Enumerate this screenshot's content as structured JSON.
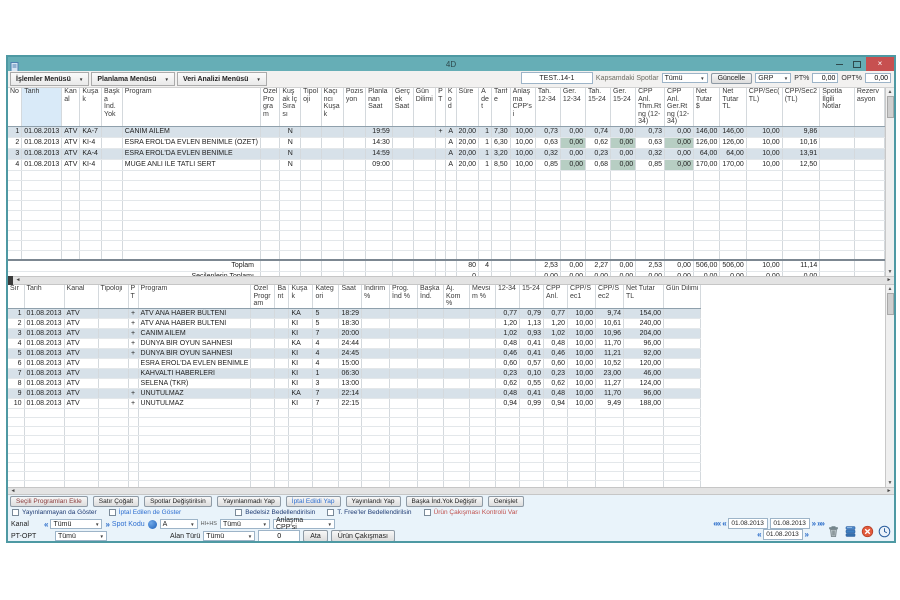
{
  "window": {
    "title": "4D"
  },
  "menubar": {
    "menus": [
      {
        "label": "İşlemler Menüsü"
      },
      {
        "label": "Planlama Menüsü"
      },
      {
        "label": "Veri Analizi Menüsü"
      }
    ],
    "plan_name": "TEST..14-1",
    "kapsam_label": "Kapsamdaki Spotlar",
    "kapsam_value": "Tümü",
    "guncelle_label": "Güncelle",
    "metric_value": "GRP",
    "pt_label": "PT%",
    "pt_value": "0,00",
    "opt_label": "OPT%",
    "opt_value": "0,00"
  },
  "table1": {
    "headers": [
      "No",
      "Tarih",
      "Kanal",
      "Kuşak",
      "Başka İnd. Yok",
      "Program",
      "Özel Program",
      "Kuşak İç Sırası",
      "Tipoloji",
      "Kaçıncı Kuşak",
      "Pozisyon",
      "Planlanan Saat",
      "Gerçek Saat",
      "Gün Dilimi",
      "PT",
      "Kod",
      "Süre",
      "Adet",
      "Tarife",
      "Anlaşma CPP'si",
      "Tah. 12-34",
      "Ger. 12-34",
      "Tah. 15-24",
      "Ger. 15-24",
      "CPP Anl. Thm.Rtng (12-34)",
      "CPP Anl. Ger.Rtng (12-34)",
      "Net Tutar $",
      "Net Tutar TL",
      "CPP/Sec(TL)",
      "CPP/Sec2(TL)",
      "Spotla İlgili Notlar",
      "Rezervasyon"
    ],
    "rows": [
      [
        "1",
        "01.08.2013",
        "ATV",
        "KA-7",
        "",
        "CANIM AİLEM",
        "",
        "N",
        "",
        "",
        "",
        "19:59",
        "",
        "",
        "+",
        "A",
        "20,00",
        "1",
        "7,30",
        "10,00",
        "0,73",
        "0,00",
        "0,74",
        "0,00",
        "0,73",
        "0,00",
        "146,00",
        "146,00",
        "10,00",
        "9,86",
        "",
        ""
      ],
      [
        "2",
        "01.08.2013",
        "ATV",
        "KI-4",
        "",
        "ESRA EROL'DA EVLEN BENİMLE (ÖZET)",
        "",
        "N",
        "",
        "",
        "",
        "14:30",
        "",
        "",
        "",
        "A",
        "20,00",
        "1",
        "6,30",
        "10,00",
        "0,63",
        "0,00",
        "0,62",
        "0,00",
        "0,63",
        "0,00",
        "126,00",
        "126,00",
        "10,00",
        "10,16",
        "",
        ""
      ],
      [
        "3",
        "01.08.2013",
        "ATV",
        "KA-4",
        "",
        "ESRA EROL'DA EVLEN BENİMLE",
        "",
        "N",
        "",
        "",
        "",
        "14:59",
        "",
        "",
        "",
        "A",
        "20,00",
        "1",
        "3,20",
        "10,00",
        "0,32",
        "0,00",
        "0,23",
        "0,00",
        "0,32",
        "0,00",
        "64,00",
        "64,00",
        "10,00",
        "13,91",
        "",
        ""
      ],
      [
        "4",
        "01.08.2013",
        "ATV",
        "KI-4",
        "",
        "MÜGE ANLI İLE TATLI SERT",
        "",
        "N",
        "",
        "",
        "",
        "09:00",
        "",
        "",
        "",
        "A",
        "20,00",
        "1",
        "8,50",
        "10,00",
        "0,85",
        "0,00",
        "0,68",
        "0,00",
        "0,85",
        "0,00",
        "170,00",
        "170,00",
        "10,00",
        "12,50",
        "",
        ""
      ]
    ],
    "totals": [
      {
        "label": "Toplam",
        "cells": {
          "16": "80",
          "17": "4",
          "20": "2,53",
          "21": "0,00",
          "22": "2,27",
          "23": "0,00",
          "24": "2,53",
          "25": "0,00",
          "26": "506,00",
          "27": "506,00",
          "28": "10,00",
          "29": "11,14"
        }
      },
      {
        "label": "Seçilenlerin Toplamı",
        "cells": {
          "16": "0",
          "20": "0,00",
          "21": "0,00",
          "22": "0,00",
          "23": "0,00",
          "24": "0,00",
          "25": "0,00",
          "26": "0,00",
          "27": "0,00",
          "28": "0,00",
          "29": "0,00"
        }
      },
      {
        "label": "Ortalama GRP (Seçilen)",
        "cells": {
          "20": "0,00",
          "21": "0,00",
          "22": "0,00",
          "23": "0,00",
          "24": "0,00",
          "25": "0,00"
        }
      }
    ]
  },
  "table2": {
    "headers": [
      "Sır",
      "Tarih",
      "Kanal",
      "Tipoloji",
      "PT",
      "Program",
      "Özel Program",
      "Bant",
      "Kuşak",
      "Kategori",
      "Saat",
      "İndirim %",
      "Prog. İnd %",
      "Başka İnd.",
      "Aj. Kom %",
      "Mevsim %",
      "12-34",
      "15-24",
      "CPP Anl.",
      "CPP/Sec1",
      "CPP/Sec2",
      "Net Tutar TL",
      "Gün Dilimi"
    ],
    "rows": [
      [
        "1",
        "01.08.2013",
        "ATV",
        "",
        "+",
        "ATV ANA HABER BÜLTENİ",
        "",
        "",
        "KA",
        "5",
        "18:29",
        "",
        "",
        "",
        "",
        "",
        "0,77",
        "0,79",
        "0,77",
        "10,00",
        "9,74",
        "154,00",
        ""
      ],
      [
        "2",
        "01.08.2013",
        "ATV",
        "",
        "+",
        "ATV ANA HABER BÜLTENİ",
        "",
        "",
        "KI",
        "5",
        "18:30",
        "",
        "",
        "",
        "",
        "",
        "1,20",
        "1,13",
        "1,20",
        "10,00",
        "10,61",
        "240,00",
        ""
      ],
      [
        "3",
        "01.08.2013",
        "ATV",
        "",
        "+",
        "CANIM AİLEM",
        "",
        "",
        "KI",
        "7",
        "20:00",
        "",
        "",
        "",
        "",
        "",
        "1,02",
        "0,93",
        "1,02",
        "10,00",
        "10,96",
        "204,00",
        ""
      ],
      [
        "4",
        "01.08.2013",
        "ATV",
        "",
        "+",
        "DÜNYA BİR OYUN SAHNESİ",
        "",
        "",
        "KA",
        "4",
        "24:44",
        "",
        "",
        "",
        "",
        "",
        "0,48",
        "0,41",
        "0,48",
        "10,00",
        "11,70",
        "96,00",
        ""
      ],
      [
        "5",
        "01.08.2013",
        "ATV",
        "",
        "+",
        "DÜNYA BİR OYUN SAHNESİ",
        "",
        "",
        "KI",
        "4",
        "24:45",
        "",
        "",
        "",
        "",
        "",
        "0,46",
        "0,41",
        "0,46",
        "10,00",
        "11,21",
        "92,00",
        ""
      ],
      [
        "6",
        "01.08.2013",
        "ATV",
        "",
        "",
        "ESRA EROL'DA EVLEN BENİMLE",
        "",
        "",
        "KI",
        "4",
        "15:00",
        "",
        "",
        "",
        "",
        "",
        "0,60",
        "0,57",
        "0,60",
        "10,00",
        "10,52",
        "120,00",
        ""
      ],
      [
        "7",
        "01.08.2013",
        "ATV",
        "",
        "",
        "KAHVALTI HABERLERİ",
        "",
        "",
        "KI",
        "1",
        "06:30",
        "",
        "",
        "",
        "",
        "",
        "0,23",
        "0,10",
        "0,23",
        "10,00",
        "23,00",
        "46,00",
        ""
      ],
      [
        "8",
        "01.08.2013",
        "ATV",
        "",
        "",
        "SELENA (TKR)",
        "",
        "",
        "KI",
        "3",
        "13:00",
        "",
        "",
        "",
        "",
        "",
        "0,62",
        "0,55",
        "0,62",
        "10,00",
        "11,27",
        "124,00",
        ""
      ],
      [
        "9",
        "01.08.2013",
        "ATV",
        "",
        "+",
        "UNUTULMAZ",
        "",
        "",
        "KA",
        "7",
        "22:14",
        "",
        "",
        "",
        "",
        "",
        "0,48",
        "0,41",
        "0,48",
        "10,00",
        "11,70",
        "96,00",
        ""
      ],
      [
        "10",
        "01.08.2013",
        "ATV",
        "",
        "+",
        "UNUTULMAZ",
        "",
        "",
        "KI",
        "7",
        "22:15",
        "",
        "",
        "",
        "",
        "",
        "0,94",
        "0,99",
        "0,94",
        "10,00",
        "9,49",
        "188,00",
        ""
      ]
    ]
  },
  "footer": {
    "buttons": [
      {
        "label": "Seçili Programları Ekle",
        "color": "#8A3A3A"
      },
      {
        "label": "Satır Çoğalt",
        "color": "#222222"
      },
      {
        "label": "Spotlar Değiştirilsin",
        "color": "#222222"
      },
      {
        "label": "Yayınlanmadı Yap",
        "color": "#222222"
      },
      {
        "label": "İptal Edildi Yap",
        "color": "#2E6FD0"
      },
      {
        "label": "Yayınlandı Yap",
        "color": "#222222"
      },
      {
        "label": "Başka İnd.Yok Değiştir",
        "color": "#222222"
      },
      {
        "label": "Genişlet",
        "color": "#222222"
      }
    ],
    "checkboxes": [
      {
        "label": "Yayınlanmayan da Göster",
        "color": "#1F3B73"
      },
      {
        "label": "İptal Edilen de Göster",
        "color": "#2E6FD0"
      },
      {
        "label": "Bedelsiz Bedellendirilsin",
        "color": "#1F3B73"
      },
      {
        "label": "T. Free'ler Bedellendirilsin",
        "color": "#1F3B73"
      },
      {
        "label": "Ürün Çakışması Kontrolü Var",
        "color": "#C0504D"
      }
    ],
    "kanal_label": "Kanal",
    "kanal_value": "Tümü",
    "spot_kodu_label": "Spot Kodu",
    "spot_kodu_value": "A",
    "hi_hs_label": "HI+HS",
    "hi_hs_value": "Tümü",
    "anlasma_cpp_value": "Anlaşma CPP'si",
    "pt_opt_label": "PT-OPT",
    "pt_opt_value": "Tümü",
    "alan_turu_label": "Alan Türü",
    "alan_turu_value": "Tümü",
    "count_value": "0",
    "ata_label": "Ata",
    "urun_cakismasi_label": "Ürün Çakışması",
    "date_start": "01.08.2013",
    "date_end": "01.08.2013",
    "date_current": "01.08.2013"
  },
  "colors": {
    "titlebar": "#66AEB6",
    "window_border": "#4E99A3",
    "close_button": "#C75050",
    "row_alt": "#D7E1E9",
    "ger_cell_green": "#B7CEC3",
    "header_sorted": "#D9EAF8",
    "link_blue": "#2E6FD0",
    "warn_red": "#C0504D"
  }
}
